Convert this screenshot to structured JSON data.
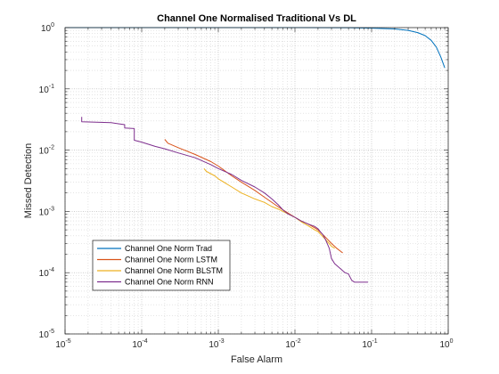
{
  "chart_data": {
    "type": "line",
    "title": "Channel One Normalised Traditional Vs DL",
    "xlabel": "False Alarm",
    "ylabel": "Missed Detection",
    "xscale": "log",
    "yscale": "log",
    "xlim": [
      1e-05,
      1
    ],
    "ylim": [
      1e-05,
      1
    ],
    "grid": "major and minor (dotted)",
    "legend_position": "lower-left",
    "x_ticks": [
      {
        "value": 1e-05,
        "base": "10",
        "exp": "-5"
      },
      {
        "value": 0.0001,
        "base": "10",
        "exp": "-4"
      },
      {
        "value": 0.001,
        "base": "10",
        "exp": "-3"
      },
      {
        "value": 0.01,
        "base": "10",
        "exp": "-2"
      },
      {
        "value": 0.1,
        "base": "10",
        "exp": "-1"
      },
      {
        "value": 1,
        "base": "10",
        "exp": "0"
      }
    ],
    "y_ticks": [
      {
        "value": 1e-05,
        "base": "10",
        "exp": "-5"
      },
      {
        "value": 0.0001,
        "base": "10",
        "exp": "-4"
      },
      {
        "value": 0.001,
        "base": "10",
        "exp": "-3"
      },
      {
        "value": 0.01,
        "base": "10",
        "exp": "-2"
      },
      {
        "value": 0.1,
        "base": "10",
        "exp": "-1"
      },
      {
        "value": 1,
        "base": "10",
        "exp": "0"
      }
    ],
    "series": [
      {
        "name": "Channel One Norm Trad",
        "color": "#0072BD",
        "points": [
          [
            1e-05,
            1.0
          ],
          [
            0.01,
            1.0
          ],
          [
            0.05,
            0.995
          ],
          [
            0.1,
            0.98
          ],
          [
            0.2,
            0.95
          ],
          [
            0.3,
            0.9
          ],
          [
            0.4,
            0.83
          ],
          [
            0.5,
            0.74
          ],
          [
            0.6,
            0.62
          ],
          [
            0.7,
            0.48
          ],
          [
            0.8,
            0.33
          ],
          [
            0.9,
            0.22
          ]
        ]
      },
      {
        "name": "Channel One Norm LSTM",
        "color": "#D95319",
        "points": [
          [
            0.0002,
            0.015
          ],
          [
            0.00022,
            0.013
          ],
          [
            0.0003,
            0.011
          ],
          [
            0.0005,
            0.0085
          ],
          [
            0.0008,
            0.0065
          ],
          [
            0.001,
            0.0055
          ],
          [
            0.0015,
            0.0038
          ],
          [
            0.002,
            0.003
          ],
          [
            0.003,
            0.0022
          ],
          [
            0.004,
            0.0017
          ],
          [
            0.006,
            0.0012
          ],
          [
            0.008,
            0.00095
          ],
          [
            0.01,
            0.0008
          ],
          [
            0.012,
            0.0007
          ],
          [
            0.015,
            0.00062
          ],
          [
            0.02,
            0.0005
          ],
          [
            0.025,
            0.00038
          ],
          [
            0.03,
            0.0003
          ],
          [
            0.035,
            0.00025
          ],
          [
            0.042,
            0.00021
          ]
        ]
      },
      {
        "name": "Channel One Norm BLSTM",
        "color": "#EDB120",
        "points": [
          [
            0.00065,
            0.005
          ],
          [
            0.0007,
            0.0045
          ],
          [
            0.0009,
            0.0038
          ],
          [
            0.001,
            0.0034
          ],
          [
            0.0015,
            0.0025
          ],
          [
            0.002,
            0.002
          ],
          [
            0.003,
            0.0016
          ],
          [
            0.004,
            0.0014
          ],
          [
            0.005,
            0.0012
          ],
          [
            0.006,
            0.0011
          ],
          [
            0.008,
            0.00092
          ],
          [
            0.01,
            0.0008
          ],
          [
            0.012,
            0.00068
          ],
          [
            0.015,
            0.00058
          ],
          [
            0.018,
            0.0005
          ],
          [
            0.02,
            0.00047
          ],
          [
            0.025,
            0.00035
          ],
          [
            0.03,
            0.00027
          ],
          [
            0.033,
            0.00025
          ]
        ]
      },
      {
        "name": "Channel One Norm RNN",
        "color": "#7E2F8E",
        "points": [
          [
            1.65e-05,
            0.035
          ],
          [
            1.65e-05,
            0.029
          ],
          [
            4e-05,
            0.028
          ],
          [
            6e-05,
            0.026
          ],
          [
            6e-05,
            0.023
          ],
          [
            8e-05,
            0.0225
          ],
          [
            8e-05,
            0.0145
          ],
          [
            0.0001,
            0.0135
          ],
          [
            0.00015,
            0.0115
          ],
          [
            0.0002,
            0.0105
          ],
          [
            0.0003,
            0.009
          ],
          [
            0.0005,
            0.0075
          ],
          [
            0.0008,
            0.0058
          ],
          [
            0.001,
            0.005
          ],
          [
            0.0015,
            0.004
          ],
          [
            0.002,
            0.0032
          ],
          [
            0.003,
            0.0025
          ],
          [
            0.004,
            0.002
          ],
          [
            0.005,
            0.0016
          ],
          [
            0.006,
            0.0013
          ],
          [
            0.007,
            0.00105
          ],
          [
            0.008,
            0.00092
          ],
          [
            0.01,
            0.0008
          ],
          [
            0.012,
            0.0007
          ],
          [
            0.015,
            0.00062
          ],
          [
            0.018,
            0.00057
          ],
          [
            0.02,
            0.00052
          ],
          [
            0.021,
            0.00048
          ],
          [
            0.023,
            0.00042
          ],
          [
            0.025,
            0.00035
          ],
          [
            0.028,
            0.00025
          ],
          [
            0.03,
            0.00017
          ],
          [
            0.033,
            0.00014
          ],
          [
            0.038,
            0.00012
          ],
          [
            0.045,
            0.0001
          ],
          [
            0.05,
            9.5e-05
          ],
          [
            0.055,
            7.5e-05
          ],
          [
            0.06,
            7e-05
          ],
          [
            0.09,
            7e-05
          ]
        ]
      }
    ]
  }
}
